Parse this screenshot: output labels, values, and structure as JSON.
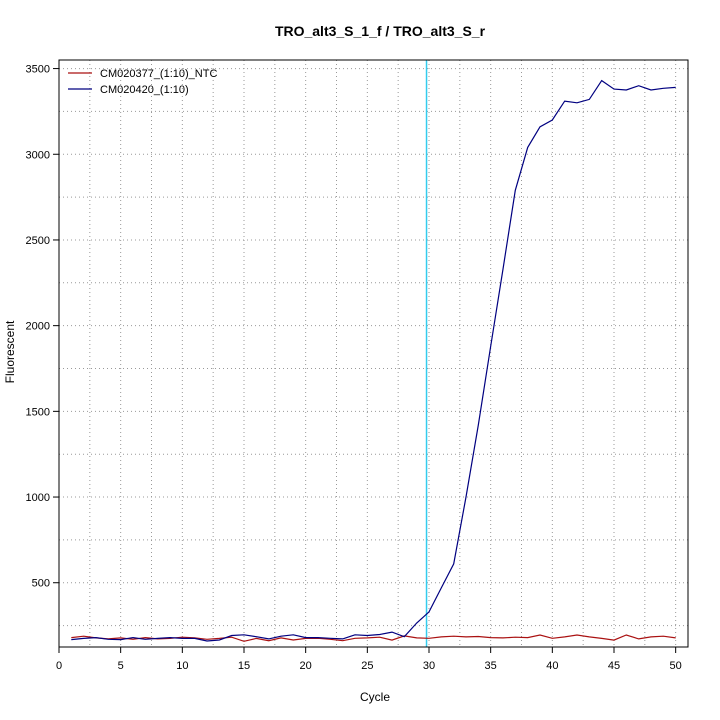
{
  "chart_data": {
    "type": "line",
    "title": "TRO_alt3_S_1_f / TRO_alt3_S_r",
    "xlabel": "Cycle",
    "ylabel": "Fluorescent",
    "xlim": [
      0,
      51
    ],
    "ylim": [
      125,
      3550
    ],
    "x_ticks": [
      0,
      5,
      10,
      15,
      20,
      25,
      30,
      35,
      40,
      45,
      50
    ],
    "y_ticks": [
      500,
      1000,
      1500,
      2000,
      2500,
      3000,
      3500
    ],
    "grid": true,
    "legend_position": "top-left",
    "threshold_cycle": 29.8,
    "threshold_color": "#33ccee",
    "x": [
      1,
      2,
      3,
      4,
      5,
      6,
      7,
      8,
      9,
      10,
      11,
      12,
      13,
      14,
      15,
      16,
      17,
      18,
      19,
      20,
      21,
      22,
      23,
      24,
      25,
      26,
      27,
      28,
      29,
      30,
      31,
      32,
      33,
      34,
      35,
      36,
      37,
      38,
      39,
      40,
      41,
      42,
      43,
      44,
      45,
      46,
      47,
      48,
      49,
      50
    ],
    "series": [
      {
        "name": "CM020377_(1:10)_NTC",
        "color": "#aa1111",
        "values": [
          180,
          188,
          178,
          172,
          178,
          170,
          180,
          172,
          175,
          182,
          178,
          170,
          175,
          182,
          158,
          175,
          162,
          178,
          166,
          175,
          176,
          170,
          162,
          176,
          178,
          182,
          165,
          190,
          178,
          176,
          184,
          188,
          184,
          186,
          180,
          178,
          182,
          180,
          195,
          176,
          184,
          195,
          184,
          175,
          165,
          195,
          172,
          184,
          188,
          178
        ]
      },
      {
        "name": "CM020420_(1:10)",
        "color": "#000080",
        "values": [
          168,
          175,
          180,
          170,
          168,
          180,
          170,
          175,
          180,
          175,
          175,
          160,
          166,
          192,
          196,
          185,
          172,
          188,
          196,
          180,
          180,
          176,
          172,
          196,
          192,
          198,
          212,
          185,
          265,
          330,
          470,
          610,
          1000,
          1420,
          1880,
          2330,
          2790,
          3040,
          3160,
          3200,
          3310,
          3300,
          3320,
          3430,
          3380,
          3375,
          3400,
          3375,
          3385,
          3390
        ]
      }
    ]
  }
}
